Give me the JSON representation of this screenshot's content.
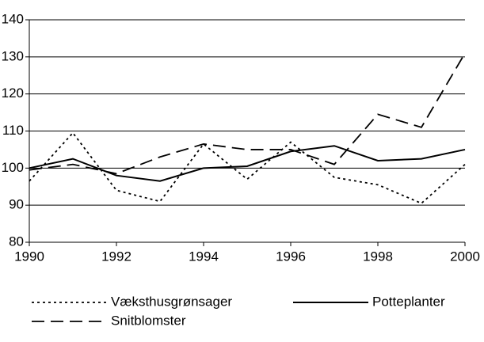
{
  "chart_data": {
    "type": "line",
    "x": [
      1990,
      1991,
      1992,
      1993,
      1994,
      1995,
      1996,
      1997,
      1998,
      1999,
      2000
    ],
    "series": [
      {
        "name": "Væksthusgrønsager",
        "color": "#000000",
        "style": "dotted",
        "values": [
          96.5,
          109.5,
          94,
          91,
          106.5,
          97,
          107,
          97.5,
          95.5,
          90.5,
          101
        ]
      },
      {
        "name": "Potteplanter",
        "color": "#000000",
        "style": "solid",
        "values": [
          100,
          102.5,
          98,
          96.5,
          100,
          100.5,
          104.5,
          106,
          102,
          102.5,
          105
        ]
      },
      {
        "name": "Snitblomster",
        "color": "#000000",
        "style": "dashed",
        "values": [
          99.5,
          101,
          98.5,
          103,
          106.5,
          105,
          105,
          101,
          114.5,
          111,
          131
        ]
      }
    ],
    "xlim": [
      1990,
      2000
    ],
    "xticks": [
      1990,
      1992,
      1994,
      1996,
      1998,
      2000
    ],
    "ylim": [
      80,
      140
    ],
    "yticks": [
      80,
      90,
      100,
      110,
      120,
      130,
      140
    ],
    "grid": true,
    "legend": "bottom"
  }
}
